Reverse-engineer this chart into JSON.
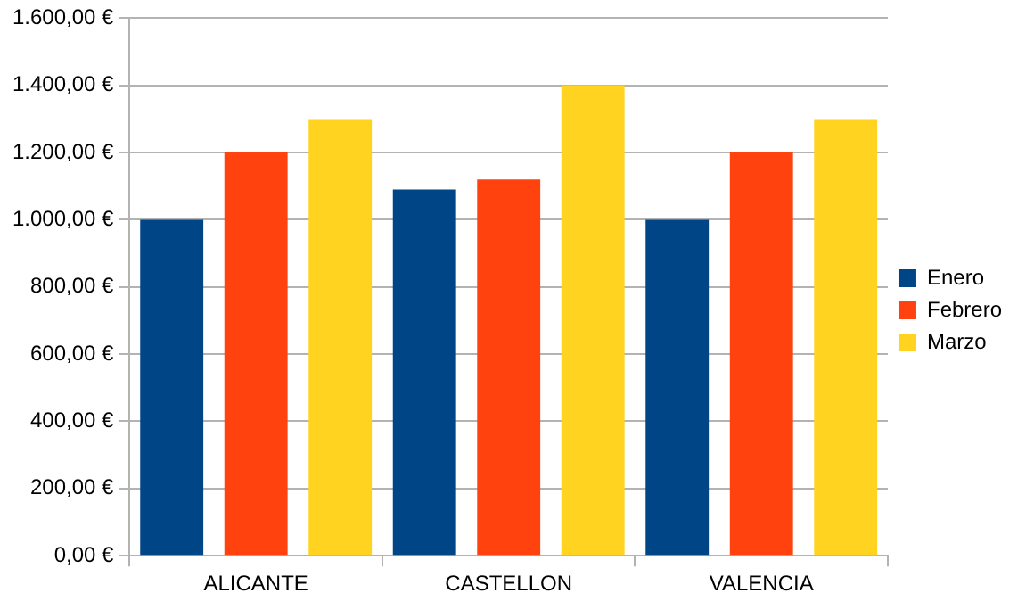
{
  "chart_data": {
    "type": "bar",
    "categories": [
      "ALICANTE",
      "CASTELLON",
      "VALENCIA"
    ],
    "series": [
      {
        "name": "Enero",
        "color": "#004586",
        "values": [
          1000,
          1090,
          1000
        ]
      },
      {
        "name": "Febrero",
        "color": "#ff420e",
        "values": [
          1200,
          1120,
          1200
        ]
      },
      {
        "name": "Marzo",
        "color": "#ffd320",
        "values": [
          1300,
          1400,
          1300
        ]
      }
    ],
    "ylim": [
      0,
      1600
    ],
    "yticks": [
      {
        "value": 0,
        "label": "0,00 €"
      },
      {
        "value": 200,
        "label": "200,00 €"
      },
      {
        "value": 400,
        "label": "400,00 €"
      },
      {
        "value": 600,
        "label": "600,00 €"
      },
      {
        "value": 800,
        "label": "800,00 €"
      },
      {
        "value": 1000,
        "label": "1.000,00 €"
      },
      {
        "value": 1200,
        "label": "1.200,00 €"
      },
      {
        "value": 1400,
        "label": "1.400,00 €"
      },
      {
        "value": 1600,
        "label": "1.600,00 €"
      }
    ],
    "grid": "y",
    "legend": "right"
  }
}
